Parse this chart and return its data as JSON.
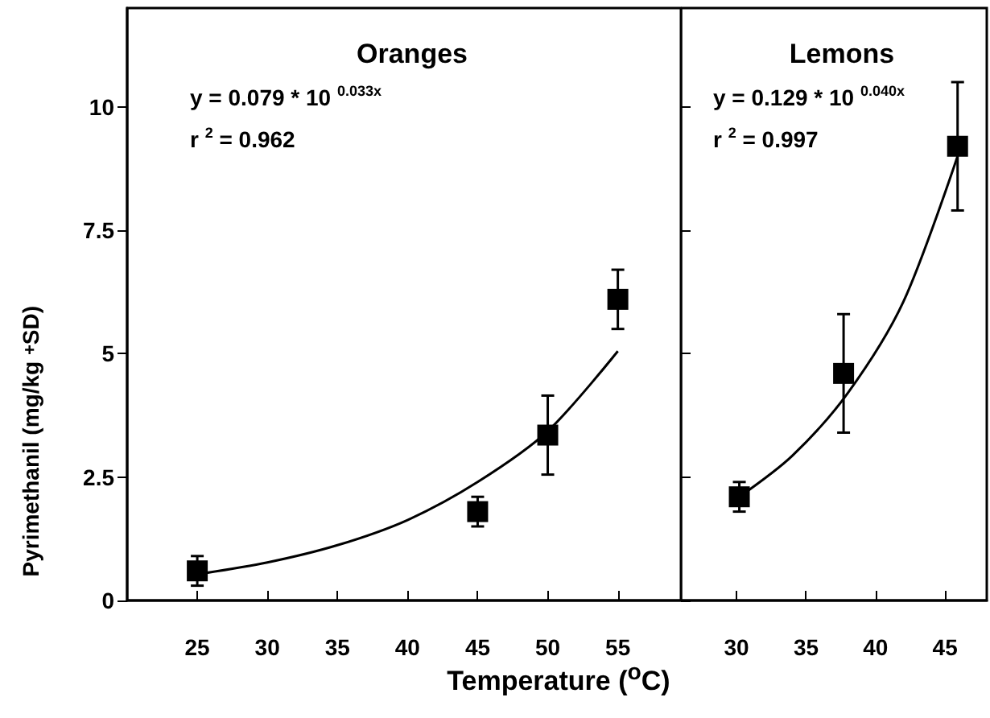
{
  "chart_data": [
    {
      "type": "scatter",
      "title": "Oranges",
      "ylabel": "Pyrimethanil (mg/kg $_{+}$SD)",
      "xlabel": "Temperature ($^{o}$C)",
      "annotations": [
        "y = 0.079 * 10 $^{0.033x}$",
        "r $^{2}$ = 0.962"
      ],
      "xlim": [
        20,
        59.5
      ],
      "xticks": [
        25,
        30,
        35,
        40,
        45,
        50,
        55
      ],
      "ylim": [
        0,
        12
      ],
      "yticks": [
        0,
        2.5,
        5,
        7.5,
        10
      ],
      "grid": false,
      "series": [
        {
          "color": "#000000",
          "marker": "square",
          "x": [
            25,
            45,
            50,
            55
          ],
          "values": [
            0.6,
            1.8,
            3.35,
            6.1
          ],
          "errors": [
            0.3,
            0.3,
            0.8,
            0.6
          ]
        },
        {
          "type": "line",
          "color": "#000000",
          "marker": "none",
          "line_style": "solid",
          "x": [
            25,
            30,
            35,
            40,
            45,
            50,
            55
          ],
          "values": [
            0.53,
            0.77,
            1.12,
            1.63,
            2.4,
            3.43,
            5.05
          ]
        }
      ]
    },
    {
      "type": "scatter",
      "title": "Lemons",
      "annotations": [
        "y = 0.129 * 10 $^{0.040x}$",
        "r $^{2}$ = 0.997"
      ],
      "xlim": [
        26,
        48
      ],
      "xticks": [
        30,
        35,
        40,
        45
      ],
      "ylim": [
        0,
        12
      ],
      "yticks": [
        0,
        2.5,
        5,
        7.5,
        10
      ],
      "tick_labels": "x",
      "grid": false,
      "series": [
        {
          "color": "#000000",
          "marker": "square",
          "x": [
            30.2,
            37.7,
            45.9
          ],
          "values": [
            2.1,
            4.6,
            9.2
          ],
          "errors": [
            0.3,
            1.2,
            1.3
          ]
        },
        {
          "type": "line",
          "color": "#000000",
          "marker": "none",
          "line_style": "solid",
          "x": [
            30.2,
            34,
            38,
            42,
            45.9
          ],
          "values": [
            2.1,
            2.93,
            4.2,
            6.05,
            9.0
          ]
        }
      ]
    }
  ]
}
